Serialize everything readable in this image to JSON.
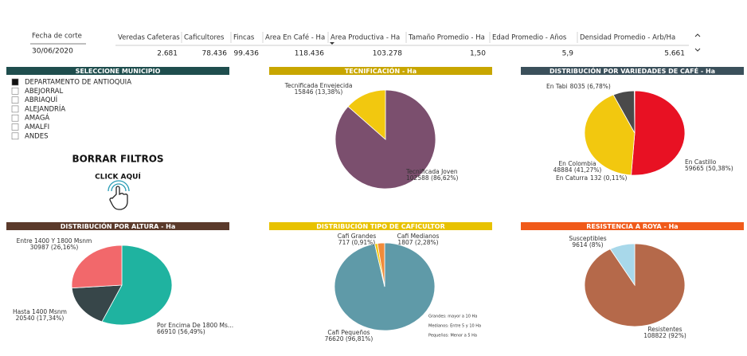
{
  "header": {
    "date_label": "Fecha de corte",
    "date_value": "30/06/2020",
    "columns": [
      "Veredas Cafeteras",
      "Caficultores",
      "Fincas",
      "Area En Café - Ha",
      "Area Productiva - Ha",
      "Tamaño Promedio - Ha",
      "Edad Promedio - Años",
      "Densidad Promedio - Arb/Ha"
    ],
    "values": [
      "2.681",
      "78.436",
      "99.436",
      "118.436",
      "103.278",
      "1,50",
      "5,9",
      "5.661"
    ]
  },
  "filter": {
    "title": "SELECCIONE MUNICIPIO",
    "items": [
      "DEPARTAMENTO DE ANTIOQUIA",
      "ABEJORRAL",
      "ABRIAQUÍ",
      "ALEJANDRÍA",
      "AMAGÁ",
      "AMALFI",
      "ANDES"
    ]
  },
  "clear": {
    "label": "BORRAR FILTROS",
    "hint": "CLICK AQUÍ"
  },
  "chart_data": [
    {
      "type": "pie",
      "title": "TECNIFICACIÓN - Ha",
      "title_color": "#c8a600",
      "categories": [
        "Tecnificada Joven",
        "Tecnificada Envejecida"
      ],
      "values": [
        102588,
        15846
      ],
      "value_labels": [
        "102588 (86,62%)",
        "15846 (13,38%)"
      ],
      "colors": [
        "#7b4f6e",
        "#f2c80f"
      ]
    },
    {
      "type": "pie",
      "title": "DISTRIBUCIÓN POR VARIEDADES DE CAFÉ - Ha",
      "title_color": "#3b505b",
      "categories": [
        "En Castillo",
        "En Colombia",
        "En Tabi",
        "En Caturra"
      ],
      "values": [
        59665,
        48884,
        8035,
        132
      ],
      "value_labels": [
        "59665 (50,38%)",
        "48884 (41,27%)",
        "8035 (6,78%)",
        "132 (0,11%)"
      ],
      "colors": [
        "#e81123",
        "#f2c80f",
        "#4a4a4a",
        "#e377c2"
      ]
    },
    {
      "type": "pie",
      "title": "DISTRIBUCIÓN POR ALTURA - Ha",
      "title_color": "#5b3a2b",
      "categories": [
        "Por Encima De 1800 Ms...",
        "Hasta 1400 Msnm",
        "Entre 1400 Y 1800 Msnm"
      ],
      "values": [
        66910,
        20540,
        30987
      ],
      "value_labels": [
        "66910 (56,49%)",
        "20540 (17,34%)",
        "30987 (26,16%)"
      ],
      "colors": [
        "#1fb3a0",
        "#374649",
        "#f2686b"
      ]
    },
    {
      "type": "pie",
      "title": "DISTRIBUCIÓN TIPO DE CAFICULTOR",
      "title_color": "#e8c200",
      "categories": [
        "Cafi Pequeños",
        "Cafi Grandes",
        "Cafi Medianos"
      ],
      "values": [
        76620,
        717,
        1807
      ],
      "value_labels": [
        "76620 (96,81%)",
        "717 (0,91%)",
        "1807 (2,28%)"
      ],
      "colors": [
        "#5f9aa8",
        "#f2c80f",
        "#f28b3a"
      ],
      "notes": [
        "Grandes: mayor a 10 Ha",
        "Medianos: Entre 5 y 10 Ha",
        "Pequeños: Menor a 5 Ha"
      ]
    },
    {
      "type": "pie",
      "title": "RESISTENCIA A ROYA - Ha",
      "title_color": "#f05a1a",
      "categories": [
        "Resistentes",
        "Susceptibles"
      ],
      "values": [
        108822,
        9614
      ],
      "value_labels": [
        "108822 (92%)",
        "9614 (8%)"
      ],
      "colors": [
        "#b5694a",
        "#a8d8ea"
      ]
    }
  ]
}
